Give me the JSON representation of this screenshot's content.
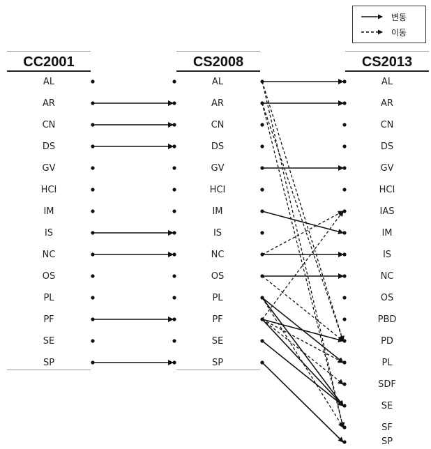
{
  "legend": {
    "solid_label": "변동",
    "dashed_label": "이동"
  },
  "columns": [
    {
      "header": "CC2001",
      "items": [
        "AL",
        "AR",
        "CN",
        "DS",
        "GV",
        "HCI",
        "IM",
        "IS",
        "NC",
        "OS",
        "PL",
        "PF",
        "SE",
        "SP"
      ]
    },
    {
      "header": "CS2008",
      "items": [
        "AL",
        "AR",
        "CN",
        "DS",
        "GV",
        "HCI",
        "IM",
        "IS",
        "NC",
        "OS",
        "PL",
        "PF",
        "SE",
        "SP"
      ]
    },
    {
      "header": "CS2013",
      "items": [
        "AL",
        "AR",
        "CN",
        "DS",
        "GV",
        "HCI",
        "IAS",
        "IM",
        "IS",
        "NC",
        "OS",
        "PBD",
        "PD",
        "PL",
        "SDF",
        "SE",
        "SF",
        "SP"
      ]
    }
  ],
  "links_cc2001_cs2008": [
    {
      "from": "AR",
      "to": "AR",
      "style": "solid"
    },
    {
      "from": "CN",
      "to": "CN",
      "style": "solid"
    },
    {
      "from": "DS",
      "to": "DS",
      "style": "solid"
    },
    {
      "from": "IS",
      "to": "IS",
      "style": "solid"
    },
    {
      "from": "NC",
      "to": "NC",
      "style": "solid"
    },
    {
      "from": "PF",
      "to": "PF",
      "style": "solid"
    },
    {
      "from": "SP",
      "to": "SP",
      "style": "solid"
    }
  ],
  "links_cs2008_cs2013": [
    {
      "from": "AL",
      "to": "AL",
      "style": "solid"
    },
    {
      "from": "AL",
      "to": "PD",
      "style": "dashed"
    },
    {
      "from": "AL",
      "to": "SF",
      "style": "dashed"
    },
    {
      "from": "AR",
      "to": "AR",
      "style": "solid"
    },
    {
      "from": "AR",
      "to": "PD",
      "style": "dashed"
    },
    {
      "from": "AR",
      "to": "SF",
      "style": "dashed"
    },
    {
      "from": "GV",
      "to": "GV",
      "style": "solid"
    },
    {
      "from": "IM",
      "to": "IM",
      "style": "solid"
    },
    {
      "from": "NC",
      "to": "IAS",
      "style": "dashed"
    },
    {
      "from": "NC",
      "to": "IS",
      "style": "solid"
    },
    {
      "from": "OS",
      "to": "NC",
      "style": "solid"
    },
    {
      "from": "OS",
      "to": "PD",
      "style": "dashed"
    },
    {
      "from": "PL",
      "to": "PL",
      "style": "solid"
    },
    {
      "from": "PL",
      "to": "SE",
      "style": "solid"
    },
    {
      "from": "PL",
      "to": "SF",
      "style": "dashed"
    },
    {
      "from": "PF",
      "to": "IAS",
      "style": "dashed"
    },
    {
      "from": "PF",
      "to": "PD",
      "style": "solid"
    },
    {
      "from": "PF",
      "to": "PL",
      "style": "dashed"
    },
    {
      "from": "PF",
      "to": "SDF",
      "style": "dashed"
    },
    {
      "from": "PF",
      "to": "SE",
      "style": "solid"
    },
    {
      "from": "SE",
      "to": "SE",
      "style": "solid"
    },
    {
      "from": "SP",
      "to": "SP",
      "style": "solid"
    }
  ]
}
